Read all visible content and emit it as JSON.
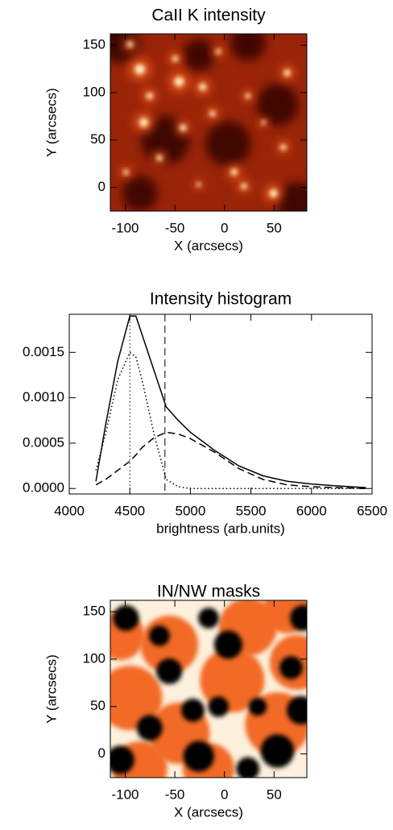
{
  "chart_data": [
    {
      "type": "image",
      "title": "CaII K intensity",
      "x_label": "X (arcsecs)",
      "y_label": "Y (arcsecs)",
      "xlim": [
        -115,
        83
      ],
      "ylim": [
        -25,
        162
      ],
      "xticks": [
        -100,
        -50,
        0,
        50
      ],
      "yticks": [
        0,
        50,
        100,
        150
      ],
      "colors": [
        "#2a0300",
        "#9a2408",
        "#e2521a",
        "#fff0b8"
      ]
    },
    {
      "type": "line",
      "title": "Intensity histogram",
      "x_label": "brightness (arb.units)",
      "x": [
        4220,
        4300,
        4400,
        4500,
        4550,
        4600,
        4700,
        4800,
        4900,
        5000,
        5200,
        5400,
        5600,
        5800,
        6000,
        6200,
        6450
      ],
      "series": [
        {
          "color": "#000000",
          "dash": "solid",
          "values": [
            8e-05,
            0.0007,
            0.0014,
            0.0019,
            0.0019,
            0.0017,
            0.0013,
            0.0009,
            0.00075,
            0.00062,
            0.00042,
            0.00025,
            0.00014,
            8e-05,
            5e-05,
            3e-05,
            1e-05
          ]
        },
        {
          "color": "#000000",
          "dash": "dotted",
          "values": [
            0.0002,
            0.0006,
            0.0012,
            0.0015,
            0.00145,
            0.0012,
            0.0006,
            0.0001,
            2e-05,
            0,
            0,
            0,
            0,
            0,
            0,
            0,
            0
          ]
        },
        {
          "color": "#000000",
          "dash": "dashed",
          "values": [
            4e-05,
            0.0001,
            0.0002,
            0.0003,
            0.00037,
            0.00045,
            0.00056,
            0.00062,
            0.0006,
            0.00055,
            0.0004,
            0.00022,
            0.0001,
            4e-05,
            2e-05,
            1e-05,
            0
          ]
        }
      ],
      "vlines": [
        {
          "value": 4500,
          "dash": "dotted"
        },
        {
          "value": 4790,
          "dash": "dashed"
        }
      ],
      "xlim": [
        4000,
        6500
      ],
      "ylim": [
        -6e-05,
        0.00192
      ],
      "xticks": [
        4000,
        4500,
        5000,
        5500,
        6000,
        6500
      ],
      "yticks": [
        {
          "value": 0,
          "label": "0.0000"
        },
        {
          "value": 0.0005,
          "label": "0.0005"
        },
        {
          "value": 0.001,
          "label": "0.0010"
        },
        {
          "value": 0.0015,
          "label": "0.0015"
        }
      ]
    },
    {
      "type": "mask",
      "title": "IN/NW masks",
      "x_label": "X (arcsecs)",
      "y_label": "Y (arcsecs)",
      "xlim": [
        -115,
        83
      ],
      "ylim": [
        -25,
        162
      ],
      "xticks": [
        -100,
        -50,
        0,
        50
      ],
      "yticks": [
        0,
        50,
        100,
        150
      ],
      "colors": [
        "#000000",
        "#f26a28",
        "#fdf0dc"
      ]
    }
  ]
}
